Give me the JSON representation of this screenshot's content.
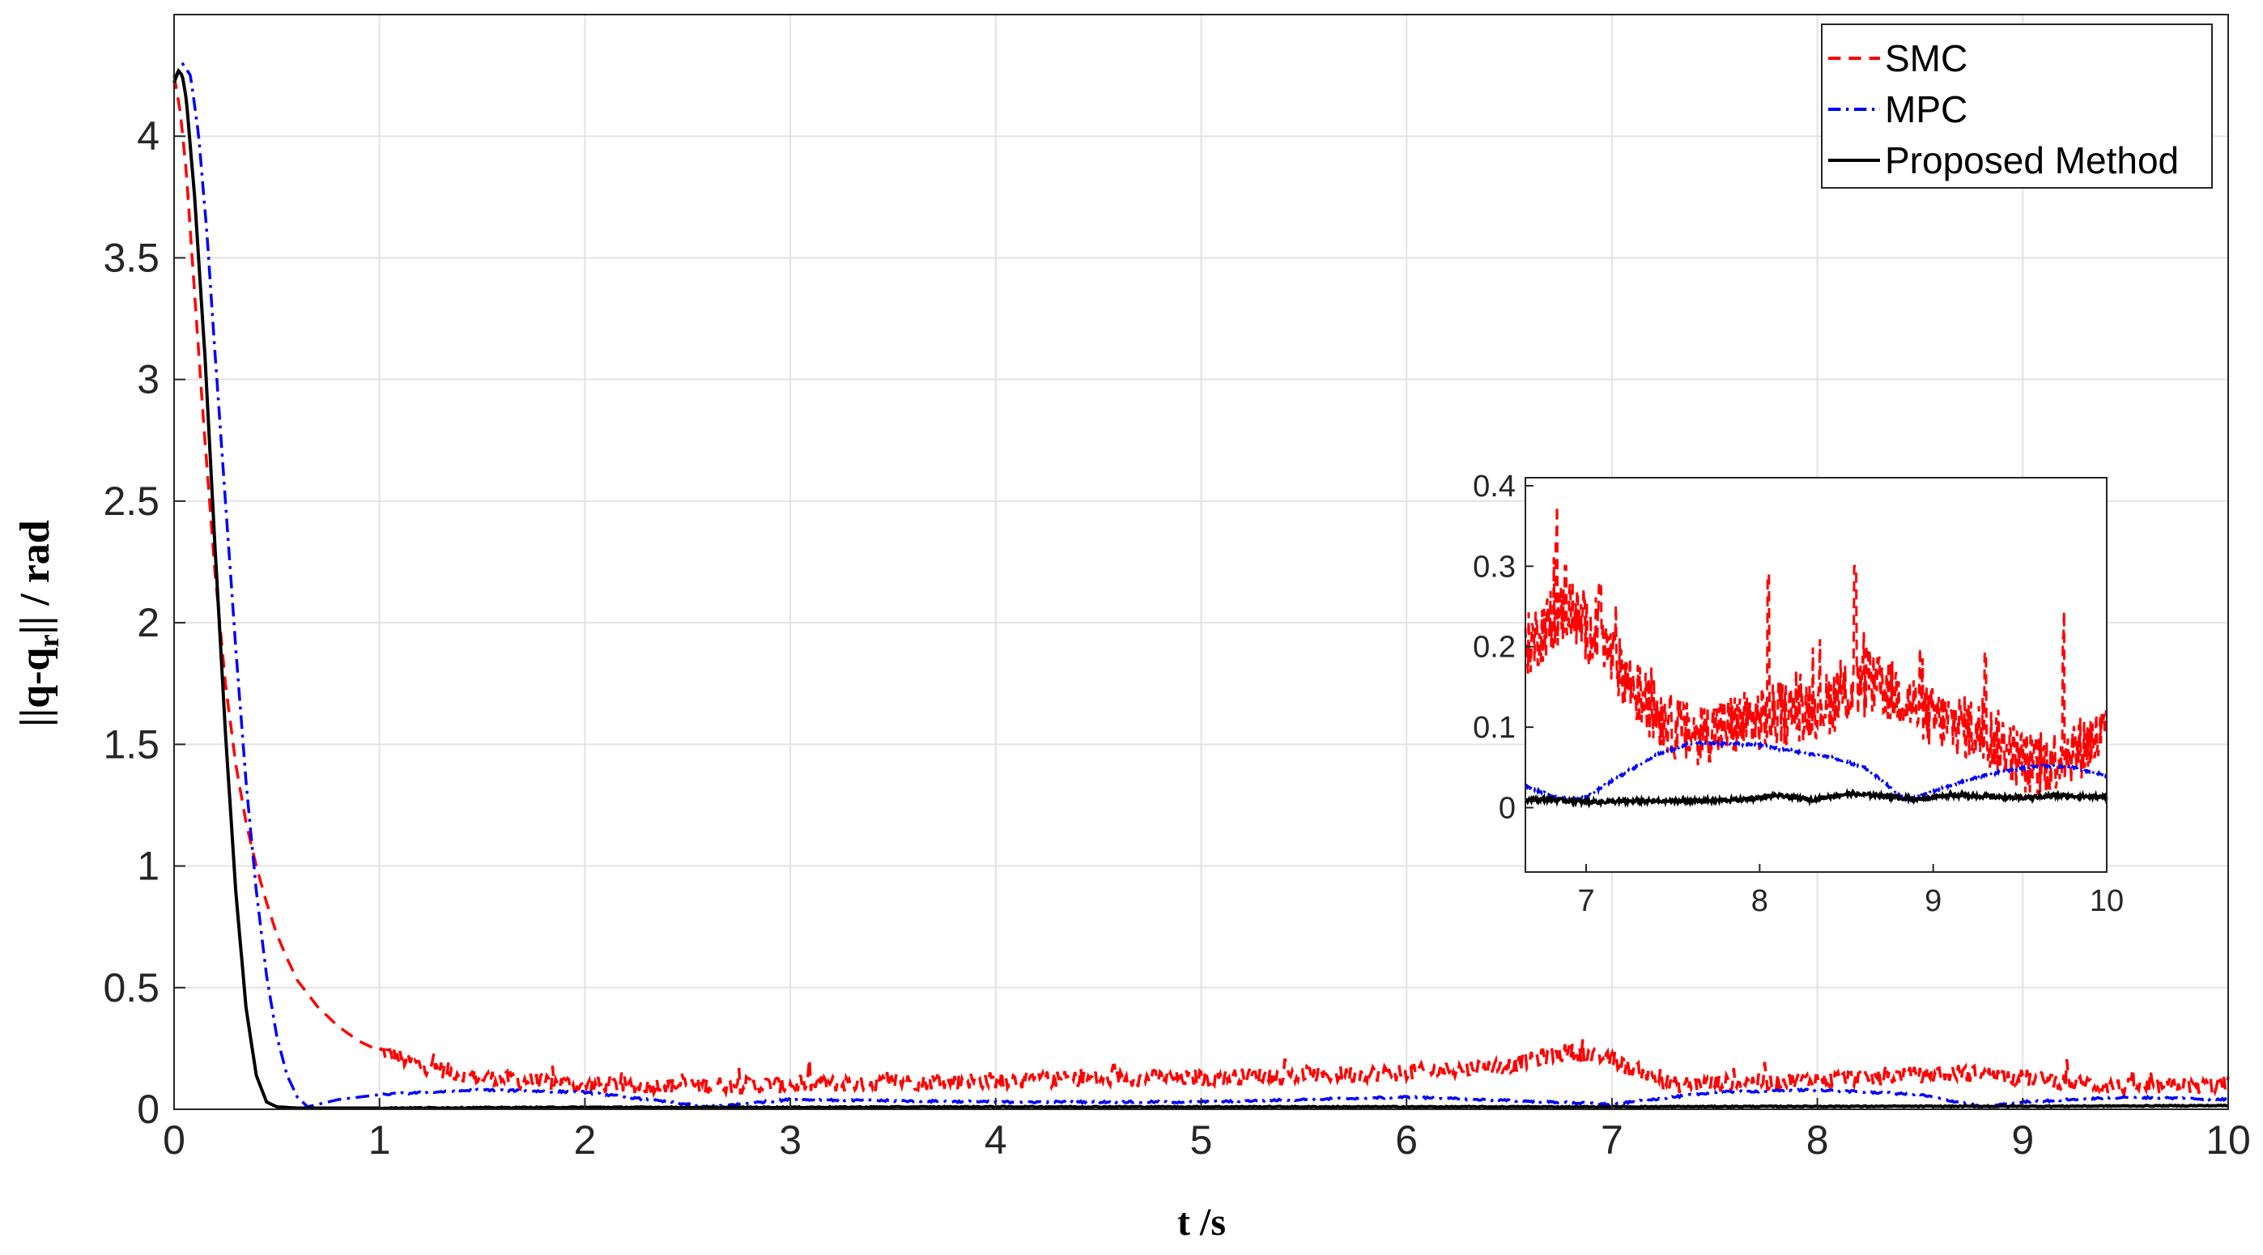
{
  "chart_data": [
    {
      "type": "line",
      "xlabel": "t /s",
      "ylabel_main": "||q-q",
      "ylabel_sub": "r",
      "ylabel_tail": "|| / rad",
      "xlim": [
        0,
        10
      ],
      "ylim": [
        0,
        4.5
      ],
      "xticks": [
        "0",
        "1",
        "2",
        "3",
        "4",
        "5",
        "6",
        "7",
        "8",
        "9",
        "10"
      ],
      "yticks": [
        "0",
        "0.5",
        "1",
        "1.5",
        "2",
        "2.5",
        "3",
        "3.5",
        "4"
      ],
      "grid": true,
      "legend_position": "top-right",
      "series": [
        {
          "name": "SMC",
          "color": "#ff0000",
          "style": "dashed",
          "x": [
            0,
            0.03,
            0.06,
            0.1,
            0.15,
            0.2,
            0.25,
            0.3,
            0.35,
            0.4,
            0.45,
            0.5,
            0.55,
            0.6,
            0.7,
            0.8,
            0.9,
            1.0,
            1.2,
            1.5,
            2.0,
            3.0,
            4.0,
            5.0,
            6.0,
            6.5,
            6.8,
            7.0,
            7.3,
            8.0,
            8.7,
            9.0,
            9.5,
            10.0
          ],
          "y": [
            4.25,
            4.1,
            3.85,
            3.35,
            2.75,
            2.2,
            1.75,
            1.42,
            1.18,
            1.0,
            0.85,
            0.72,
            0.62,
            0.53,
            0.42,
            0.34,
            0.28,
            0.24,
            0.18,
            0.13,
            0.1,
            0.1,
            0.12,
            0.13,
            0.15,
            0.18,
            0.24,
            0.2,
            0.1,
            0.12,
            0.15,
            0.13,
            0.09,
            0.1
          ]
        },
        {
          "name": "MPC",
          "color": "#0000ff",
          "style": "dashdot",
          "x": [
            0,
            0.04,
            0.08,
            0.12,
            0.16,
            0.2,
            0.25,
            0.3,
            0.35,
            0.4,
            0.45,
            0.5,
            0.55,
            0.6,
            0.65,
            0.7,
            0.8,
            1.0,
            1.5,
            2.0,
            2.6,
            3.0,
            4.0,
            5.0,
            6.0,
            6.7,
            7.0,
            7.5,
            8.0,
            8.5,
            8.8,
            9.0,
            9.5,
            10.0
          ],
          "y": [
            4.22,
            4.3,
            4.25,
            4.0,
            3.6,
            3.1,
            2.5,
            1.9,
            1.35,
            0.9,
            0.55,
            0.3,
            0.14,
            0.05,
            0.01,
            0.02,
            0.04,
            0.06,
            0.08,
            0.07,
            0.01,
            0.04,
            0.03,
            0.03,
            0.05,
            0.03,
            0.02,
            0.07,
            0.08,
            0.06,
            0.01,
            0.03,
            0.05,
            0.04
          ]
        },
        {
          "name": "Proposed Method",
          "color": "#000000",
          "style": "solid",
          "x": [
            0,
            0.02,
            0.04,
            0.06,
            0.1,
            0.15,
            0.2,
            0.25,
            0.3,
            0.35,
            0.4,
            0.45,
            0.5,
            0.6,
            1.0,
            2.0,
            3.0,
            4.0,
            5.0,
            6.0,
            7.0,
            8.0,
            9.0,
            10.0
          ],
          "y": [
            4.22,
            4.27,
            4.25,
            4.15,
            3.75,
            3.1,
            2.3,
            1.55,
            0.9,
            0.42,
            0.14,
            0.03,
            0.01,
            0.005,
            0.005,
            0.008,
            0.008,
            0.01,
            0.01,
            0.01,
            0.01,
            0.012,
            0.012,
            0.015
          ]
        }
      ]
    },
    {
      "type": "line",
      "role": "inset",
      "xlim": [
        6.65,
        10
      ],
      "ylim": [
        -0.08,
        0.41
      ],
      "xticks": [
        "7",
        "8",
        "9",
        "10"
      ],
      "yticks": [
        "0",
        "0.1",
        "0.2",
        "0.3",
        "0.4"
      ],
      "series": [
        {
          "name": "SMC",
          "color": "#ff0000",
          "style": "dashed",
          "x": [
            6.65,
            6.8,
            6.9,
            7.0,
            7.1,
            7.2,
            7.3,
            7.4,
            7.5,
            7.6,
            7.8,
            8.0,
            8.2,
            8.4,
            8.6,
            8.7,
            8.8,
            9.0,
            9.2,
            9.4,
            9.5,
            9.6,
            9.8,
            10.0
          ],
          "y": [
            0.2,
            0.23,
            0.25,
            0.22,
            0.2,
            0.17,
            0.14,
            0.12,
            0.1,
            0.09,
            0.1,
            0.11,
            0.12,
            0.13,
            0.15,
            0.15,
            0.14,
            0.11,
            0.1,
            0.08,
            0.06,
            0.05,
            0.07,
            0.09
          ],
          "spikes": [
            [
              6.83,
              0.33
            ],
            [
              6.88,
              0.3
            ],
            [
              7.08,
              0.28
            ],
            [
              8.05,
              0.29
            ],
            [
              8.55,
              0.3
            ],
            [
              8.62,
              0.2
            ],
            [
              9.3,
              0.19
            ],
            [
              9.75,
              0.21
            ]
          ]
        },
        {
          "name": "MPC",
          "color": "#0000ff",
          "style": "dashdot",
          "x": [
            6.65,
            6.8,
            6.9,
            7.0,
            7.2,
            7.4,
            7.6,
            7.8,
            8.0,
            8.2,
            8.4,
            8.6,
            8.7,
            8.8,
            8.85,
            8.9,
            9.0,
            9.1,
            9.2,
            9.4,
            9.6,
            9.8,
            10.0
          ],
          "y": [
            0.027,
            0.015,
            0.01,
            0.013,
            0.04,
            0.065,
            0.08,
            0.08,
            0.078,
            0.07,
            0.063,
            0.05,
            0.035,
            0.015,
            0.01,
            0.013,
            0.02,
            0.027,
            0.035,
            0.045,
            0.052,
            0.05,
            0.04
          ]
        },
        {
          "name": "Proposed Method",
          "color": "#000000",
          "style": "solid",
          "x": [
            6.65,
            6.8,
            7.0,
            7.3,
            7.6,
            7.9,
            8.1,
            8.3,
            8.5,
            8.7,
            8.9,
            9.1,
            9.3,
            9.5,
            9.7,
            10.0
          ],
          "y": [
            0.01,
            0.01,
            0.007,
            0.008,
            0.008,
            0.01,
            0.015,
            0.01,
            0.017,
            0.015,
            0.01,
            0.016,
            0.014,
            0.012,
            0.015,
            0.013
          ]
        }
      ]
    }
  ]
}
